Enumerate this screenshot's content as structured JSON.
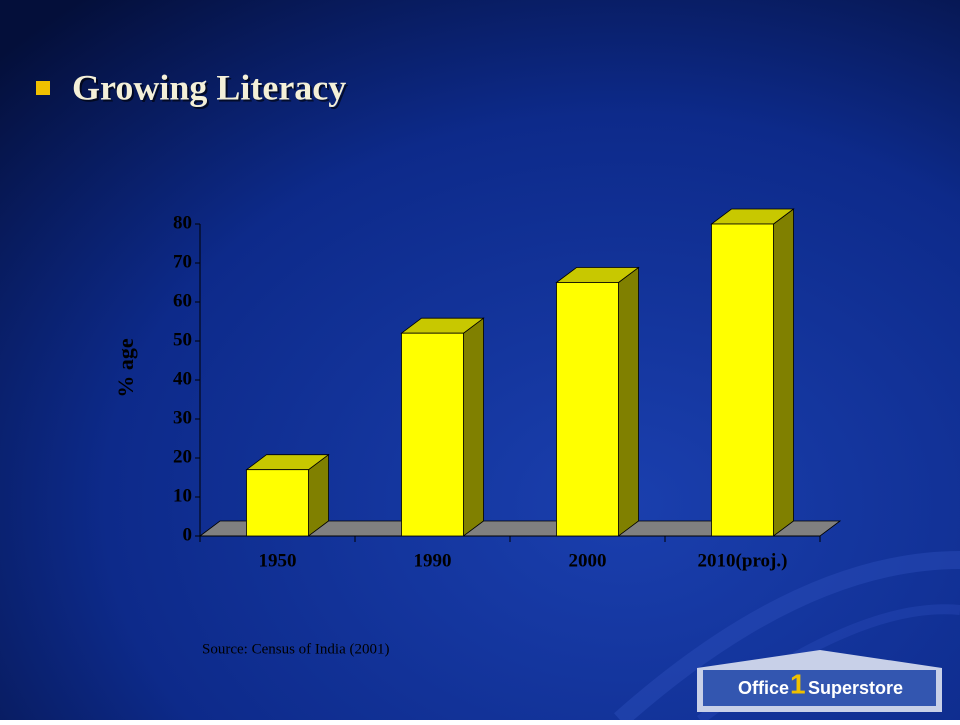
{
  "chart_data": {
    "type": "bar3d",
    "title": "Growing Literacy",
    "y_label": "% age",
    "categories": [
      "1950",
      "1990",
      "2000",
      "2010(proj.)"
    ],
    "values": [
      17,
      52,
      65,
      80
    ],
    "color": "#ffff00",
    "ylim": [
      0,
      80
    ],
    "yticks": [
      0,
      10,
      20,
      30,
      40,
      50,
      60,
      70,
      80
    ],
    "source": "Source: Census of India (2001)"
  },
  "logo": {
    "left": "Office",
    "number": "1",
    "right": "Superstore"
  }
}
